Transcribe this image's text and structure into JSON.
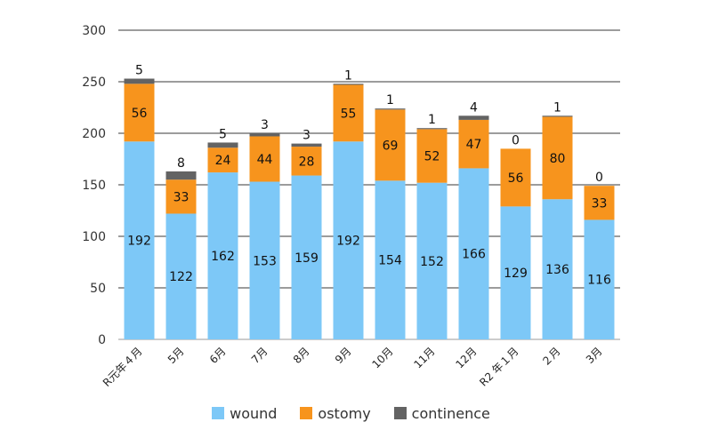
{
  "chart_data": {
    "type": "bar",
    "stacked": true,
    "categories": [
      "R元年４月",
      "5月",
      "6月",
      "7月",
      "8月",
      "9月",
      "10月",
      "11月",
      "12月",
      "R2 年１月",
      "２月",
      "3月"
    ],
    "series": [
      {
        "name": "wound",
        "color": "#7DC8F7",
        "values": [
          192,
          122,
          162,
          153,
          159,
          192,
          154,
          152,
          166,
          129,
          136,
          116
        ]
      },
      {
        "name": "ostomy",
        "color": "#F7941D",
        "values": [
          56,
          33,
          24,
          44,
          28,
          55,
          69,
          52,
          47,
          56,
          80,
          33
        ]
      },
      {
        "name": "continence",
        "color": "#636363",
        "values": [
          5,
          8,
          5,
          3,
          3,
          1,
          1,
          1,
          4,
          0,
          1,
          0
        ]
      }
    ],
    "ylim": [
      0,
      300
    ],
    "yticks": [
      0,
      50,
      100,
      150,
      200,
      250,
      300
    ],
    "grid": true,
    "legend_position": "bottom"
  }
}
